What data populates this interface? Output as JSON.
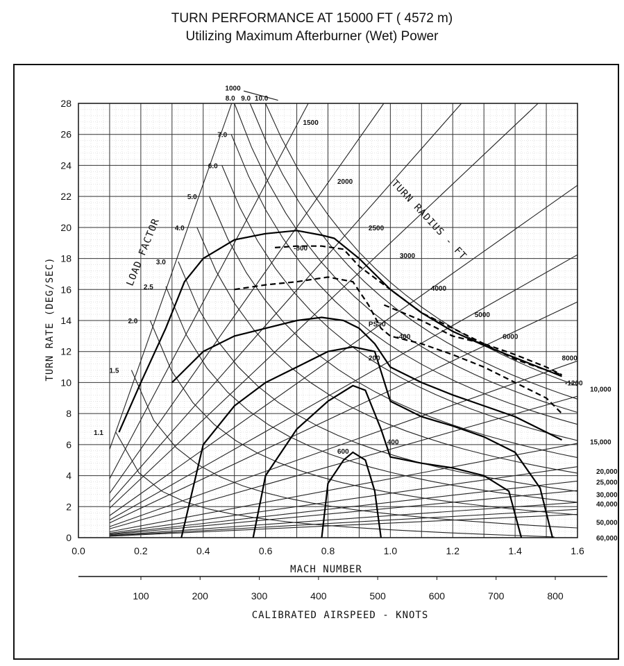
{
  "title": "TURN PERFORMANCE AT 15000 FT ( 4572 m)",
  "subtitle": "Utilizing Maximum Afterburner (Wet) Power",
  "chart_data": {
    "type": "line",
    "title": "TURN PERFORMANCE AT 15000 FT ( 4572 m)",
    "subtitle": "Utilizing Maximum Afterburner (Wet) Power",
    "xlabel": "MACH NUMBER",
    "ylabel": "TURN RATE (DEG/SEC)",
    "x2label": "CALIBRATED AIRSPEED - KNOTS",
    "xlim": [
      0.0,
      1.6
    ],
    "ylim": [
      0,
      28
    ],
    "grid": true,
    "x_ticks": [
      "0.0",
      "0.2",
      "0.4",
      "0.6",
      "0.8",
      "1.0",
      "1.2",
      "1.4",
      "1.6"
    ],
    "y_ticks": [
      "0",
      "2",
      "4",
      "6",
      "8",
      "10",
      "12",
      "14",
      "16",
      "18",
      "20",
      "22",
      "24",
      "26",
      "28"
    ],
    "x2_ticks": [
      "100",
      "200",
      "300",
      "400",
      "500",
      "600",
      "700",
      "800"
    ],
    "load_factor_title": "LOAD FACTOR",
    "load_factor_lines": [
      {
        "label": "1.1",
        "mach_at_top": 0.12,
        "rate_at_top": 6.8
      },
      {
        "label": "1.5",
        "mach_at_top": 0.17,
        "rate_at_top": 10.8
      },
      {
        "label": "2.0",
        "mach_at_top": 0.23,
        "rate_at_top": 14.0
      },
      {
        "label": "2.5",
        "mach_at_top": 0.28,
        "rate_at_top": 16.2
      },
      {
        "label": "3.0",
        "mach_at_top": 0.32,
        "rate_at_top": 17.8
      },
      {
        "label": "4.0",
        "mach_at_top": 0.38,
        "rate_at_top": 20.0
      },
      {
        "label": "5.0",
        "mach_at_top": 0.42,
        "rate_at_top": 22.0
      },
      {
        "label": "6.0",
        "mach_at_top": 0.46,
        "rate_at_top": 24.0
      },
      {
        "label": "7.0",
        "mach_at_top": 0.49,
        "rate_at_top": 26.0
      },
      {
        "label": "8.0",
        "mach_at_top": 0.5,
        "rate_at_top": 28.0
      },
      {
        "label": "9.0",
        "mach_at_top": 0.55,
        "rate_at_top": 28.0
      },
      {
        "label": "10.0",
        "mach_at_top": 0.6,
        "rate_at_top": 28.0
      }
    ],
    "turn_radius_title": "TURN RADIUS - FT",
    "turn_radius_lines": [
      {
        "label": "1000",
        "rate_at_m05": 28.5
      },
      {
        "label": "1500",
        "rate_at_m05": 19.0
      },
      {
        "label": "2000",
        "rate_at_m05": 14.3
      },
      {
        "label": "2500",
        "rate_at_m05": 11.4
      },
      {
        "label": "3000",
        "rate_at_m05": 9.5
      },
      {
        "label": "4000",
        "rate_at_m05": 7.1
      },
      {
        "label": "5000",
        "rate_at_m05": 5.7
      },
      {
        "label": "6000",
        "rate_at_m05": 4.75
      },
      {
        "label": "8000",
        "rate_at_m05": 3.56
      },
      {
        "label": "10,000",
        "rate_at_m05": 2.85
      },
      {
        "label": "15,000",
        "rate_at_m05": 1.9
      },
      {
        "label": "20,000",
        "rate_at_m05": 1.43
      },
      {
        "label": "25,000",
        "rate_at_m05": 1.14
      },
      {
        "label": "30,000",
        "rate_at_m05": 0.95
      },
      {
        "label": "40,000",
        "rate_at_m05": 0.71
      },
      {
        "label": "50,000",
        "rate_at_m05": 0.57
      },
      {
        "label": "60,000",
        "rate_at_m05": 0.47
      }
    ],
    "ps_series": [
      {
        "name": "PS=0",
        "label": "PS=0",
        "style": "solid",
        "x": [
          0.3,
          0.4,
          0.5,
          0.6,
          0.7,
          0.78,
          0.85,
          0.9,
          0.95,
          1.0,
          1.1,
          1.2,
          1.3,
          1.4,
          1.48,
          1.55
        ],
        "y": [
          10.0,
          12.0,
          13.0,
          13.5,
          14.0,
          14.2,
          14.0,
          13.5,
          12.5,
          11.0,
          10.0,
          9.2,
          8.5,
          7.8,
          7.0,
          6.3
        ]
      },
      {
        "name": "PS=200",
        "label": "200",
        "style": "solid",
        "x": [
          0.33,
          0.4,
          0.5,
          0.6,
          0.7,
          0.8,
          0.88,
          0.95,
          1.0,
          1.1,
          1.2,
          1.3,
          1.4,
          1.48,
          1.52
        ],
        "y": [
          0.0,
          6.0,
          8.5,
          10.0,
          11.0,
          12.0,
          12.3,
          12.0,
          8.8,
          7.8,
          7.2,
          6.5,
          5.5,
          3.2,
          0.0
        ]
      },
      {
        "name": "PS=400",
        "label": "400",
        "style": "solid",
        "x": [
          0.56,
          0.6,
          0.7,
          0.8,
          0.88,
          0.92,
          0.97,
          1.0,
          1.1,
          1.2,
          1.3,
          1.38,
          1.42
        ],
        "y": [
          0.0,
          4.0,
          7.0,
          8.8,
          9.8,
          9.5,
          7.0,
          5.2,
          4.8,
          4.5,
          4.0,
          3.0,
          0.0
        ]
      },
      {
        "name": "PS=600",
        "label": "600",
        "style": "solid",
        "x": [
          0.78,
          0.8,
          0.85,
          0.88,
          0.92,
          0.95,
          0.97
        ],
        "y": [
          0.0,
          3.5,
          5.0,
          5.5,
          5.0,
          3.0,
          0.0
        ]
      },
      {
        "name": "PS=-400",
        "label": "-400",
        "style": "dashed",
        "x": [
          0.5,
          0.6,
          0.7,
          0.8,
          0.88,
          0.93,
          0.97,
          1.0,
          1.1,
          1.2,
          1.3,
          1.4,
          1.5,
          1.55
        ],
        "y": [
          16.0,
          16.3,
          16.5,
          16.8,
          16.5,
          15.0,
          13.5,
          13.0,
          12.5,
          11.8,
          11.0,
          10.0,
          9.0,
          8.0
        ]
      },
      {
        "name": "PS=-800",
        "label": "-800",
        "style": "dashed",
        "x": [
          0.63,
          0.7,
          0.78,
          0.85,
          0.9,
          1.0,
          1.1,
          1.2,
          1.3,
          1.4,
          1.5,
          1.55
        ],
        "y": [
          18.7,
          18.8,
          18.8,
          18.6,
          17.5,
          16.0,
          14.5,
          13.5,
          12.5,
          11.5,
          10.8,
          10.5
        ]
      },
      {
        "name": "PS=-1200",
        "label": "-1200",
        "style": "dashed",
        "x": [
          0.98,
          1.1,
          1.2,
          1.3,
          1.4,
          1.5,
          1.55
        ],
        "y": [
          15.0,
          14.0,
          13.0,
          12.5,
          11.8,
          11.0,
          10.5
        ]
      },
      {
        "name": "Lift limit",
        "label": "",
        "style": "solid",
        "x": [
          0.13,
          0.2,
          0.28,
          0.34,
          0.4,
          0.5,
          0.6,
          0.7,
          0.78,
          0.82,
          0.9,
          1.0,
          1.1,
          1.2,
          1.3,
          1.4,
          1.5,
          1.55
        ],
        "y": [
          6.8,
          10.0,
          13.5,
          16.5,
          18.0,
          19.2,
          19.6,
          19.8,
          19.5,
          19.3,
          18.0,
          16.0,
          14.5,
          13.3,
          12.4,
          11.6,
          10.8,
          10.4
        ]
      }
    ]
  }
}
